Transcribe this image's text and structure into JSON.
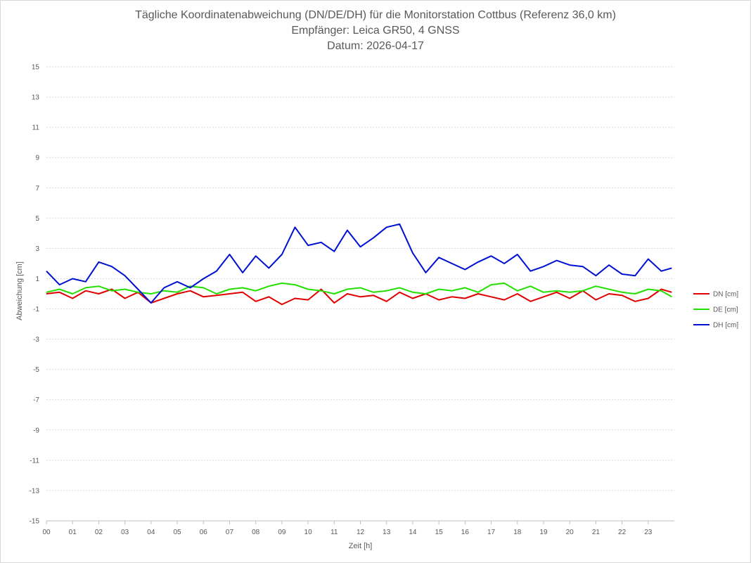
{
  "chart_data": {
    "type": "line",
    "title": "Tägliche Koordinatenabweichung (DN/DE/DH) für die Monitorstation Cottbus (Referenz 36,0 km)",
    "subtitle_lines": [
      "Empfänger: Leica GR50, 4 GNSS",
      "Datum: 2026-04-17"
    ],
    "xlabel": "Zeit [h]",
    "ylabel": "Abweichung [cm]",
    "xlim": [
      0,
      24
    ],
    "ylim": [
      -15,
      15
    ],
    "x_tick_labels": [
      "00",
      "01",
      "02",
      "03",
      "04",
      "05",
      "06",
      "07",
      "08",
      "09",
      "10",
      "11",
      "12",
      "13",
      "14",
      "15",
      "16",
      "17",
      "18",
      "19",
      "20",
      "21",
      "22",
      "23"
    ],
    "y_ticks": [
      15,
      13,
      11,
      9,
      7,
      5,
      3,
      1,
      -1,
      -3,
      -5,
      -7,
      -9,
      -11,
      -13,
      -15
    ],
    "grid": "horizontal dotted",
    "legend_position": "right",
    "x": [
      0,
      0.5,
      1,
      1.5,
      2,
      2.5,
      3,
      3.5,
      4,
      4.5,
      5,
      5.5,
      6,
      6.5,
      7,
      7.5,
      8,
      8.5,
      9,
      9.5,
      10,
      10.5,
      11,
      11.5,
      12,
      12.5,
      13,
      13.5,
      14,
      14.5,
      15,
      15.5,
      16,
      16.5,
      17,
      17.5,
      18,
      18.5,
      19,
      19.5,
      20,
      20.5,
      21,
      21.5,
      22,
      22.5,
      23,
      23.5,
      23.9
    ],
    "series": [
      {
        "name": "DN [cm]",
        "color": "#e00000",
        "values": [
          0.0,
          0.1,
          -0.3,
          0.2,
          0.0,
          0.3,
          -0.3,
          0.1,
          -0.6,
          -0.3,
          0.0,
          0.2,
          -0.2,
          -0.1,
          0.0,
          0.1,
          -0.5,
          -0.2,
          -0.7,
          -0.3,
          -0.4,
          0.3,
          -0.6,
          0.0,
          -0.2,
          -0.1,
          -0.5,
          0.1,
          -0.3,
          0.0,
          -0.4,
          -0.2,
          -0.3,
          0.0,
          -0.2,
          -0.4,
          0.0,
          -0.5,
          -0.2,
          0.1,
          -0.3,
          0.2,
          -0.4,
          0.0,
          -0.1,
          -0.5,
          -0.3,
          0.3,
          0.1
        ]
      },
      {
        "name": "DE [cm]",
        "color": "#22e000",
        "values": [
          0.1,
          0.3,
          0.0,
          0.4,
          0.5,
          0.2,
          0.3,
          0.1,
          0.0,
          0.2,
          0.1,
          0.5,
          0.4,
          0.0,
          0.3,
          0.4,
          0.2,
          0.5,
          0.7,
          0.6,
          0.3,
          0.2,
          0.0,
          0.3,
          0.4,
          0.1,
          0.2,
          0.4,
          0.1,
          0.0,
          0.3,
          0.2,
          0.4,
          0.1,
          0.6,
          0.7,
          0.2,
          0.5,
          0.1,
          0.2,
          0.1,
          0.2,
          0.5,
          0.3,
          0.1,
          0.0,
          0.3,
          0.2,
          -0.2
        ]
      },
      {
        "name": "DH [cm]",
        "color": "#0010d0",
        "values": [
          1.5,
          0.6,
          1.0,
          0.8,
          2.1,
          1.8,
          1.2,
          0.3,
          -0.6,
          0.4,
          0.8,
          0.4,
          1.0,
          1.5,
          2.6,
          1.4,
          2.5,
          1.7,
          2.6,
          4.4,
          3.2,
          3.4,
          2.8,
          4.2,
          3.1,
          3.7,
          4.4,
          4.6,
          2.7,
          1.4,
          2.4,
          2.0,
          1.6,
          2.1,
          2.5,
          2.0,
          2.6,
          1.5,
          1.8,
          2.2,
          1.9,
          1.8,
          1.2,
          1.9,
          1.3,
          1.2,
          2.3,
          1.5,
          1.7
        ]
      }
    ]
  }
}
